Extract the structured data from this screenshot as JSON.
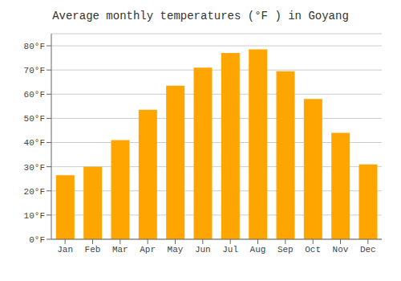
{
  "chart_data": {
    "type": "bar",
    "title": "Average monthly temperatures (°F ) in Goyang",
    "categories": [
      "Jan",
      "Feb",
      "Mar",
      "Apr",
      "May",
      "Jun",
      "Jul",
      "Aug",
      "Sep",
      "Oct",
      "Nov",
      "Dec"
    ],
    "values": [
      26.5,
      30.0,
      41.0,
      53.5,
      63.5,
      71.0,
      77.0,
      78.5,
      69.5,
      58.0,
      44.0,
      31.0
    ],
    "color": "#FFA500",
    "ylim": [
      0,
      85
    ],
    "yticks": [
      {
        "value": 0,
        "label": "0°F"
      },
      {
        "value": 10,
        "label": "10°F"
      },
      {
        "value": 20,
        "label": "20°F"
      },
      {
        "value": 30,
        "label": "30°F"
      },
      {
        "value": 40,
        "label": "40°F"
      },
      {
        "value": 50,
        "label": "50°F"
      },
      {
        "value": 60,
        "label": "60°F"
      },
      {
        "value": 70,
        "label": "70°F"
      },
      {
        "value": 80,
        "label": "80°F"
      }
    ],
    "grid": true
  }
}
